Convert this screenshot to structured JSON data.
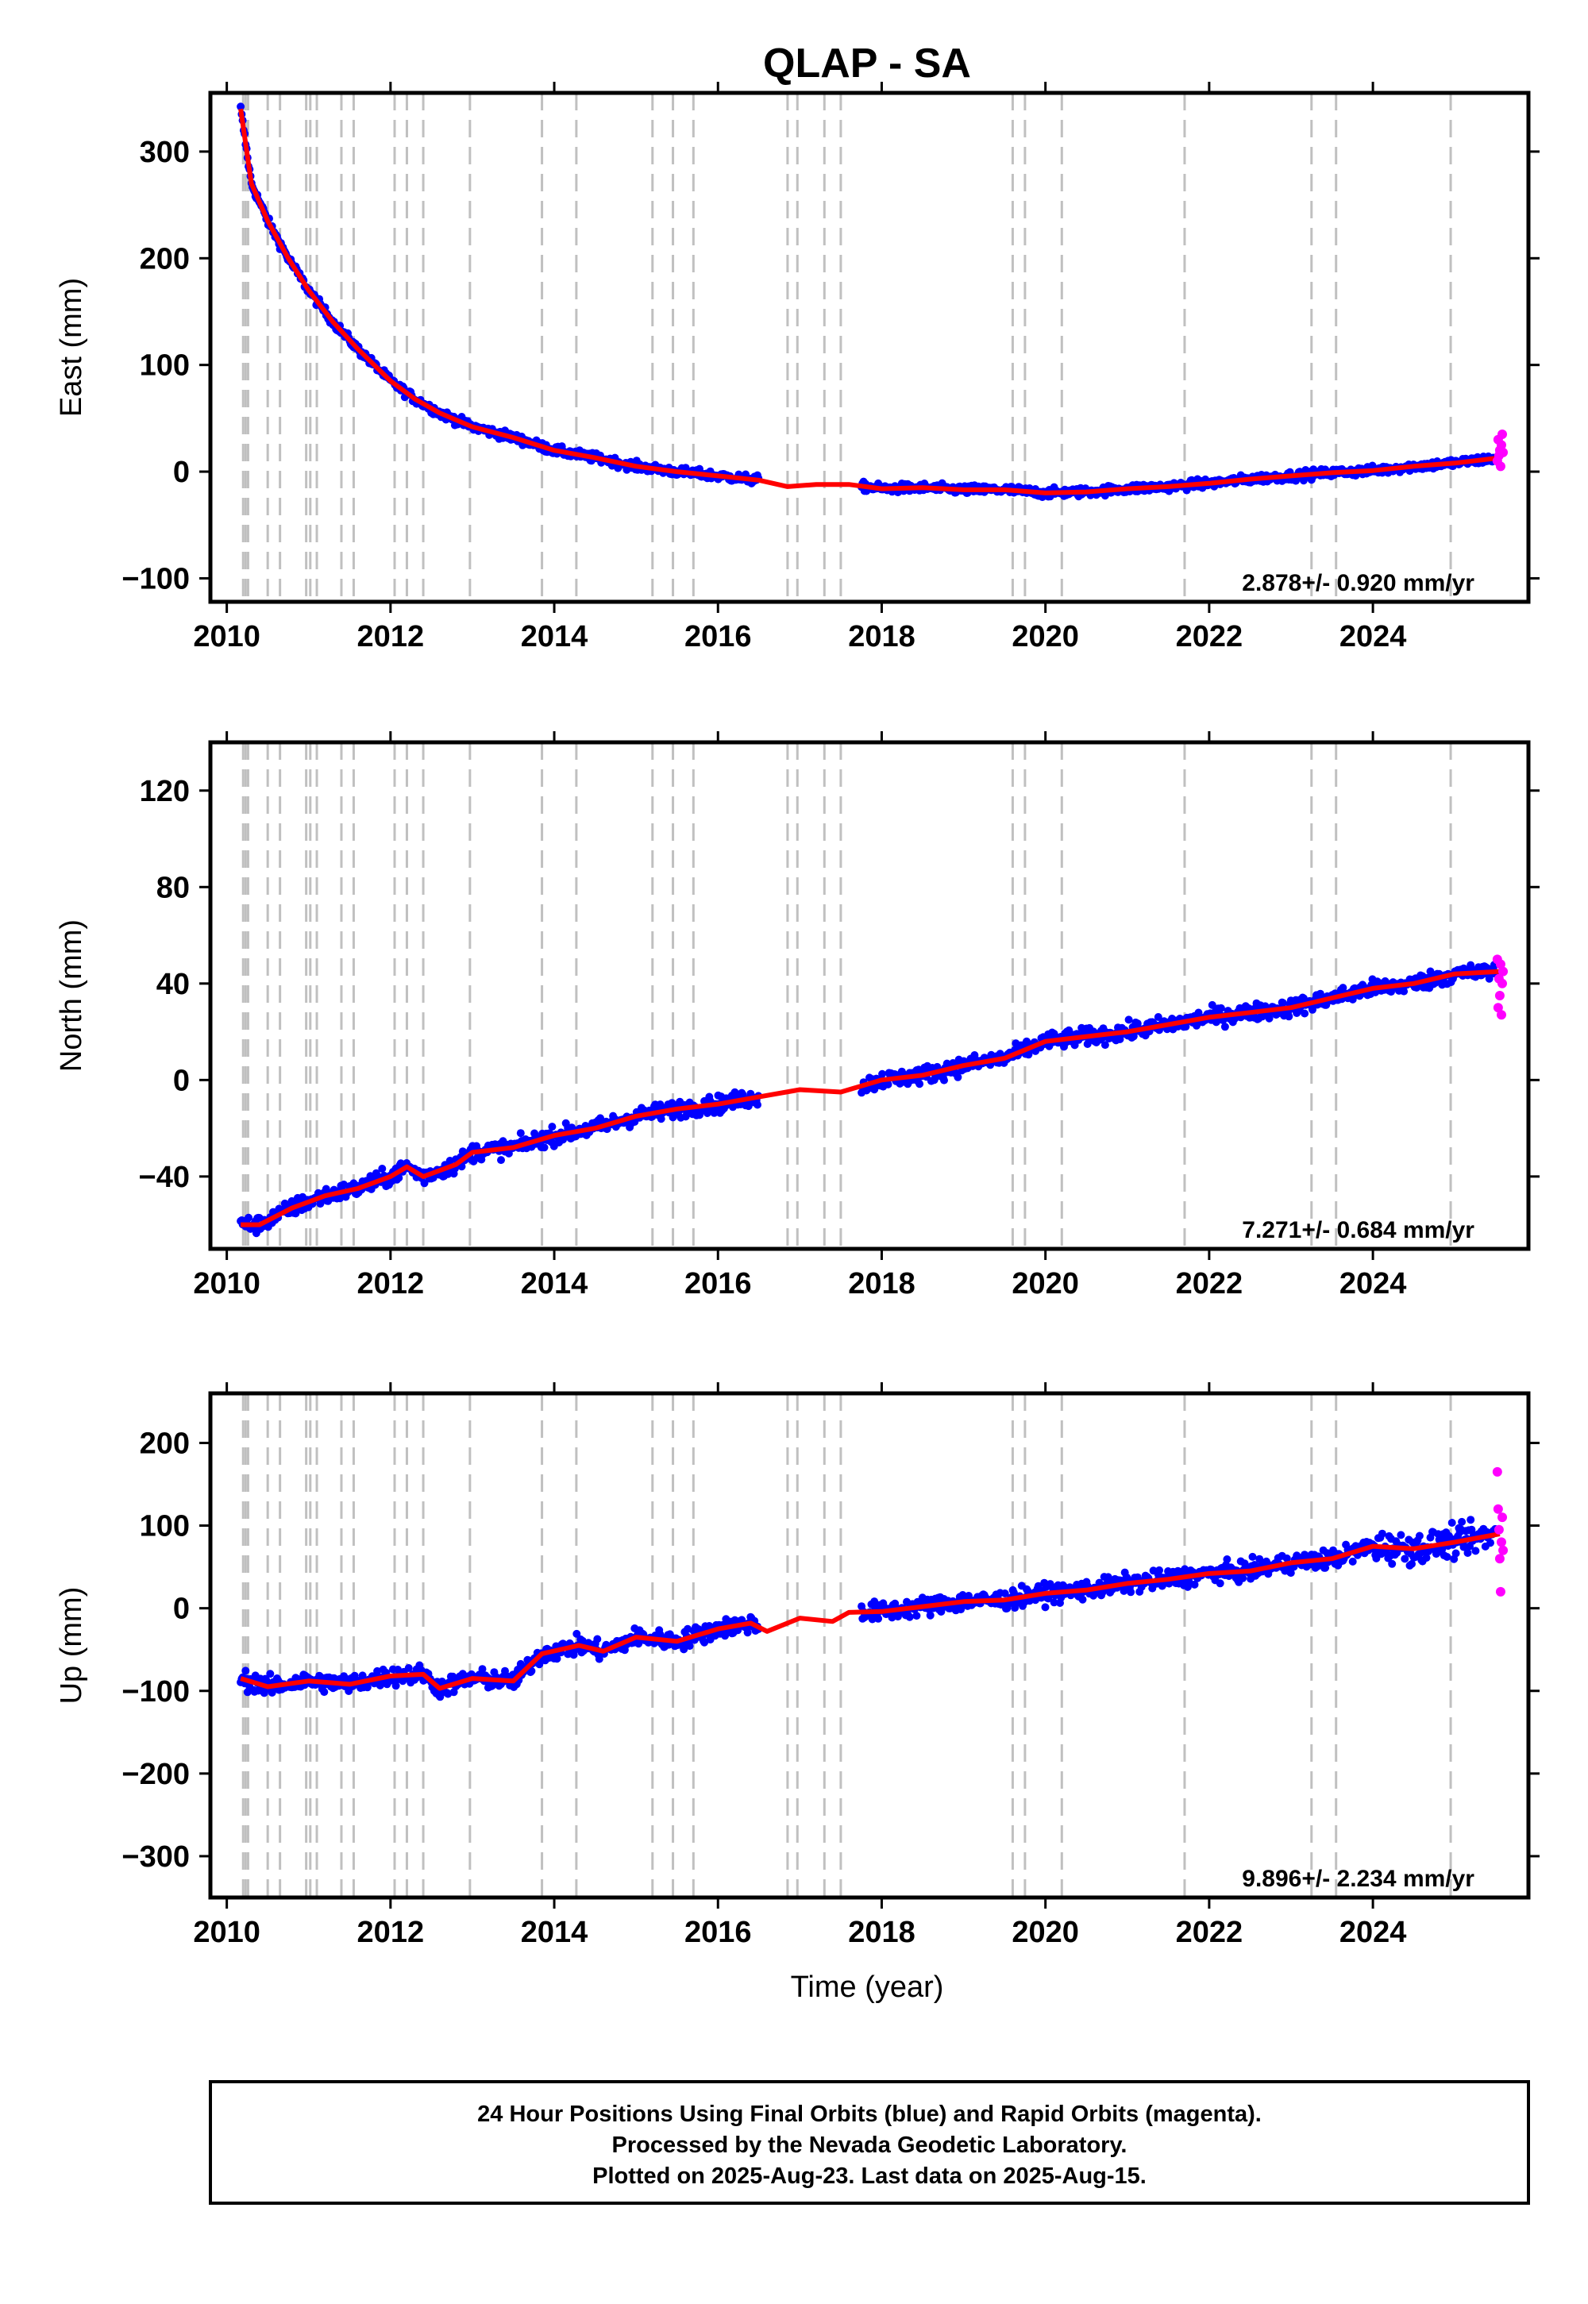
{
  "title": "QLAP - SA",
  "xlabel": "Time (year)",
  "colors": {
    "final_orbits": "#0000ff",
    "rapid_orbits": "#ff00ff",
    "model_fit": "#ff0000",
    "offset_lines": "#c0c0c0",
    "frame": "#000000"
  },
  "caption": {
    "line1": "24 Hour Positions Using Final Orbits (blue) and Rapid Orbits (magenta).",
    "line2": "Processed by the Nevada Geodetic Laboratory.",
    "line3": "Plotted on 2025-Aug-23. Last data on 2025-Aug-15."
  },
  "chart_data": [
    {
      "type": "scatter",
      "component": "east",
      "ylabel": "East (mm)",
      "rate_label": "2.878+/- 0.920 mm/yr",
      "xlim": [
        2009.8,
        2025.9
      ],
      "ylim": [
        -122,
        355
      ],
      "x_ticks": [
        2010,
        2012,
        2014,
        2016,
        2018,
        2020,
        2022,
        2024
      ],
      "y_ticks": [
        -100,
        0,
        100,
        200,
        300
      ],
      "grid": false,
      "offset_epochs": [
        2010.2,
        2010.23,
        2010.26,
        2010.5,
        2010.65,
        2010.97,
        2011.02,
        2011.1,
        2011.4,
        2011.55,
        2012.05,
        2012.2,
        2012.4,
        2012.97,
        2013.85,
        2014.27,
        2015.2,
        2015.45,
        2015.7,
        2016.85,
        2016.97,
        2017.3,
        2017.5,
        2019.6,
        2019.75,
        2020.2,
        2021.7,
        2023.25,
        2023.55,
        2024.95
      ],
      "model": {
        "x": [
          2010.17,
          2010.3,
          2010.5,
          2010.75,
          2011.0,
          2011.3,
          2011.6,
          2012.0,
          2012.3,
          2012.6,
          2013.0,
          2013.5,
          2014.0,
          2014.5,
          2015.0,
          2015.5,
          2016.0,
          2016.5,
          2016.85,
          2017.2,
          2017.6,
          2018.0,
          2018.5,
          2019.0,
          2019.5,
          2020.0,
          2020.5,
          2021.0,
          2021.5,
          2022.0,
          2022.5,
          2023.0,
          2023.5,
          2024.0,
          2024.5,
          2025.0,
          2025.55
        ],
        "y": [
          340,
          270,
          235,
          200,
          170,
          140,
          115,
          85,
          68,
          55,
          42,
          32,
          20,
          13,
          5,
          0,
          -4,
          -8,
          -14,
          -12,
          -12,
          -16,
          -15,
          -17,
          -17,
          -20,
          -19,
          -16,
          -14,
          -11,
          -7,
          -4,
          -1,
          1,
          5,
          8,
          13
        ]
      },
      "rapid_points": {
        "x": [
          2025.52,
          2025.53,
          2025.54,
          2025.55,
          2025.56,
          2025.57,
          2025.58,
          2025.59
        ],
        "y": [
          10,
          30,
          15,
          20,
          5,
          25,
          35,
          18
        ]
      }
    },
    {
      "type": "scatter",
      "component": "north",
      "ylabel": "North (mm)",
      "rate_label": "7.271+/- 0.684 mm/yr",
      "xlim": [
        2009.8,
        2025.9
      ],
      "ylim": [
        -70,
        140
      ],
      "x_ticks": [
        2010,
        2012,
        2014,
        2016,
        2018,
        2020,
        2022,
        2024
      ],
      "y_ticks": [
        -40,
        0,
        40,
        80,
        120
      ],
      "grid": false,
      "offset_epochs": [
        2010.2,
        2010.23,
        2010.26,
        2010.5,
        2010.65,
        2010.97,
        2011.02,
        2011.1,
        2011.4,
        2011.55,
        2012.05,
        2012.2,
        2012.4,
        2012.97,
        2013.85,
        2014.27,
        2015.2,
        2015.45,
        2015.7,
        2016.85,
        2016.97,
        2017.3,
        2017.5,
        2019.6,
        2019.75,
        2020.2,
        2021.7,
        2023.25,
        2023.55,
        2024.95
      ],
      "model": {
        "x": [
          2010.17,
          2010.4,
          2010.8,
          2011.2,
          2011.6,
          2012.0,
          2012.2,
          2012.4,
          2012.8,
          2013.0,
          2013.5,
          2014.0,
          2014.5,
          2015.0,
          2015.5,
          2016.0,
          2016.5,
          2017.0,
          2017.5,
          2018.0,
          2018.5,
          2019.0,
          2019.5,
          2020.0,
          2020.5,
          2021.0,
          2021.5,
          2022.0,
          2022.5,
          2023.0,
          2023.5,
          2024.0,
          2024.5,
          2025.0,
          2025.55
        ],
        "y": [
          -60,
          -60,
          -53,
          -48,
          -45,
          -40,
          -36,
          -40,
          -35,
          -30,
          -28,
          -23,
          -20,
          -15,
          -12,
          -10,
          -7,
          -4,
          -5,
          0,
          2,
          6,
          9,
          16,
          18,
          20,
          23,
          26,
          28,
          30,
          34,
          38,
          40,
          44,
          45
        ]
      },
      "rapid_points": {
        "x": [
          2025.52,
          2025.53,
          2025.54,
          2025.55,
          2025.56,
          2025.57,
          2025.58,
          2025.59
        ],
        "y": [
          50,
          30,
          42,
          35,
          48,
          27,
          40,
          45
        ]
      }
    },
    {
      "type": "scatter",
      "component": "up",
      "ylabel": "Up (mm)",
      "rate_label": "9.896+/- 2.234 mm/yr",
      "xlim": [
        2009.8,
        2025.9
      ],
      "ylim": [
        -350,
        260
      ],
      "x_ticks": [
        2010,
        2012,
        2014,
        2016,
        2018,
        2020,
        2022,
        2024
      ],
      "y_ticks": [
        -300,
        -200,
        -100,
        0,
        100,
        200
      ],
      "grid": false,
      "offset_epochs": [
        2010.2,
        2010.23,
        2010.26,
        2010.5,
        2010.65,
        2010.97,
        2011.02,
        2011.1,
        2011.4,
        2011.55,
        2012.05,
        2012.2,
        2012.4,
        2012.97,
        2013.85,
        2014.27,
        2015.2,
        2015.45,
        2015.7,
        2016.85,
        2016.97,
        2017.3,
        2017.5,
        2019.6,
        2019.75,
        2020.2,
        2021.7,
        2023.25,
        2023.55,
        2024.95
      ],
      "model": {
        "x": [
          2010.17,
          2010.5,
          2011.0,
          2011.5,
          2012.0,
          2012.4,
          2012.6,
          2013.0,
          2013.5,
          2013.85,
          2014.3,
          2014.6,
          2015.0,
          2015.5,
          2016.0,
          2016.4,
          2016.6,
          2017.0,
          2017.4,
          2017.6,
          2018.0,
          2018.5,
          2019.0,
          2019.5,
          2020.0,
          2020.5,
          2021.0,
          2021.5,
          2022.0,
          2022.5,
          2023.0,
          2023.5,
          2024.0,
          2024.5,
          2025.0,
          2025.55
        ],
        "y": [
          -85,
          -95,
          -88,
          -92,
          -82,
          -80,
          -97,
          -85,
          -88,
          -55,
          -45,
          -52,
          -35,
          -40,
          -25,
          -18,
          -28,
          -12,
          -16,
          -5,
          -4,
          2,
          8,
          10,
          18,
          22,
          30,
          35,
          42,
          45,
          55,
          60,
          75,
          72,
          80,
          90
        ]
      },
      "rapid_points": {
        "x": [
          2025.52,
          2025.53,
          2025.54,
          2025.55,
          2025.56,
          2025.57,
          2025.58,
          2025.59
        ],
        "y": [
          165,
          120,
          95,
          60,
          20,
          80,
          110,
          70
        ]
      }
    }
  ]
}
